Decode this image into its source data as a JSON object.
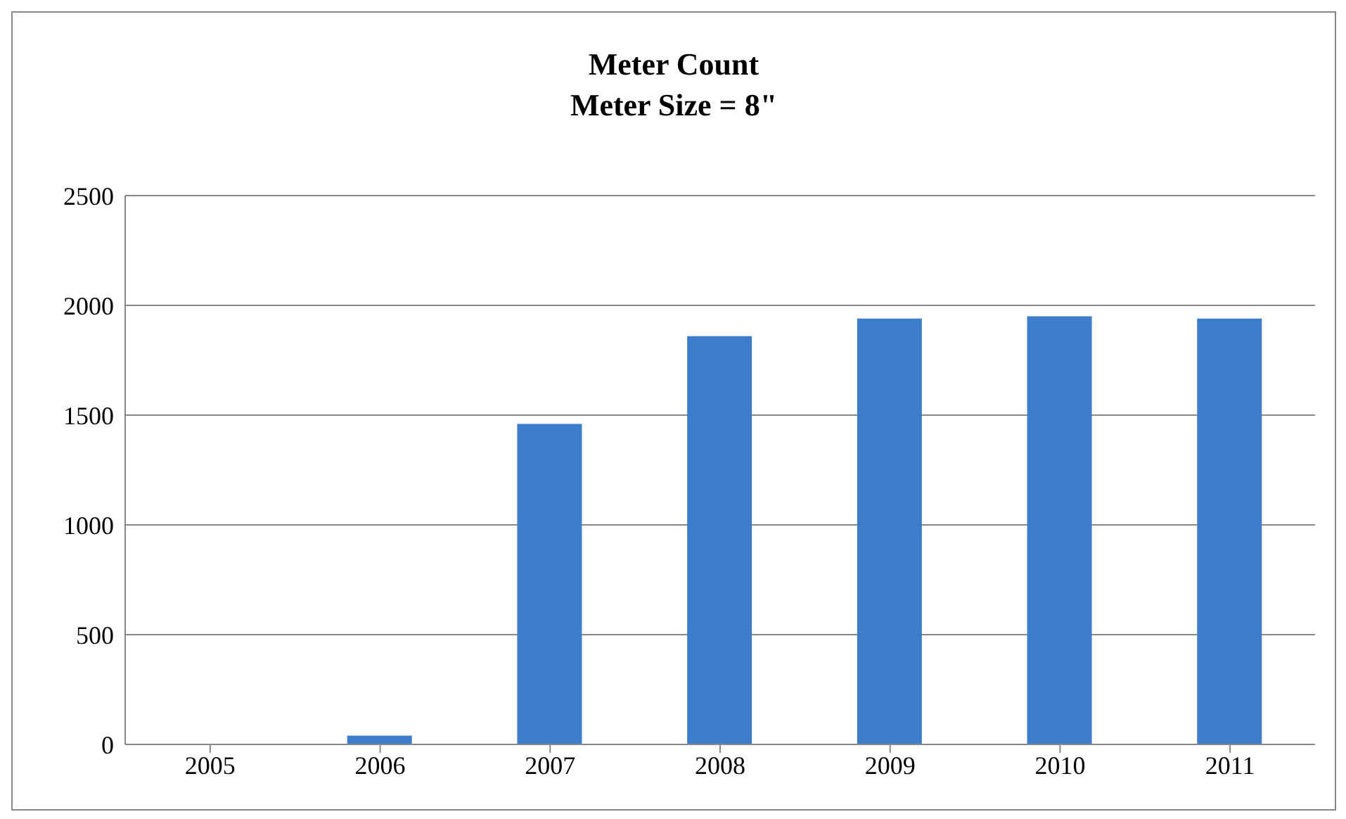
{
  "chart_data": {
    "type": "bar",
    "title": "Meter Count\nMeter Size = 8\"",
    "categories": [
      "2005",
      "2006",
      "2007",
      "2008",
      "2009",
      "2010",
      "2011"
    ],
    "values": [
      0,
      40,
      1460,
      1860,
      1940,
      1950,
      1940
    ],
    "color": "#3d7cc9",
    "ylim": [
      0,
      2500
    ],
    "yticks": [
      0,
      500,
      1000,
      1500,
      2000,
      2500
    ],
    "grid": "y"
  }
}
